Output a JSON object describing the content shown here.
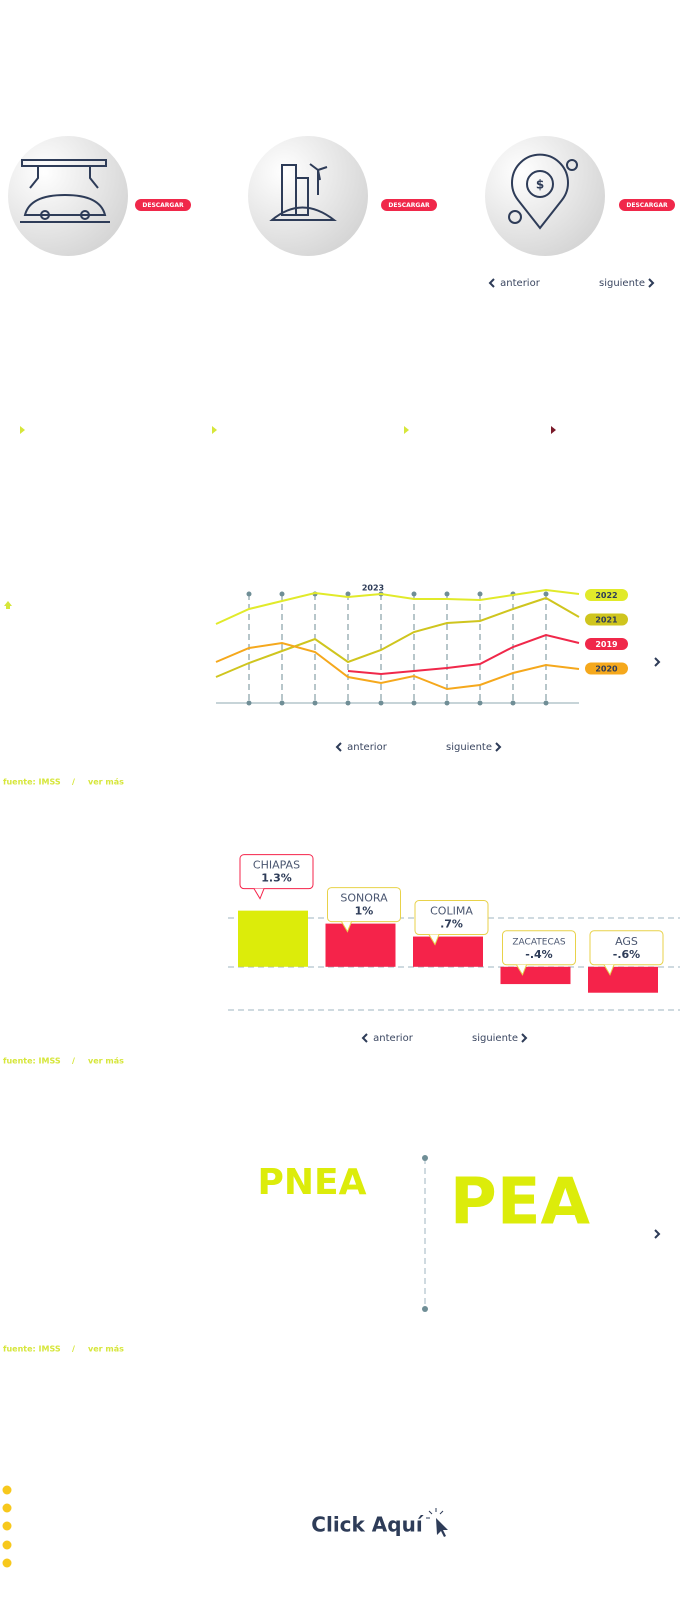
{
  "downloads": [
    "DESCARGAR",
    "DESCARGAR",
    "DESCARGAR"
  ],
  "pagers": [
    {
      "prev": "anterior",
      "next": "siguiente"
    },
    {
      "prev": "anterior",
      "next": "siguiente"
    },
    {
      "prev": "anterior",
      "next": "siguiente"
    }
  ],
  "sources": [
    {
      "source": "fuente: IMSS",
      "separator": "/",
      "more": "ver más"
    },
    {
      "source": "fuente: IMSS",
      "separator": "/",
      "more": "ver más"
    },
    {
      "source": "fuente: IMSS",
      "separator": "/",
      "more": "ver más"
    }
  ],
  "chart_data": [
    {
      "type": "line",
      "annotation": "2023",
      "categories": [
        null,
        null,
        null,
        null,
        null,
        null,
        null,
        null,
        null,
        null,
        null,
        null
      ],
      "ylim": [
        0,
        120
      ],
      "series": [
        {
          "name": "2022",
          "color": "#e1ea2a",
          "values": [
            79,
            94,
            102,
            110,
            106,
            109,
            104,
            104,
            103,
            108,
            113,
            109
          ]
        },
        {
          "name": "2021",
          "color": "#cfc51e",
          "values": [
            26,
            40,
            52,
            64,
            41,
            53,
            71,
            80,
            82,
            94,
            105,
            86
          ]
        },
        {
          "name": "2019",
          "color": "#f0284a",
          "values": [
            null,
            null,
            null,
            null,
            32,
            29,
            32,
            35,
            39,
            56,
            68,
            60
          ]
        },
        {
          "name": "2020",
          "color": "#f5a81c",
          "values": [
            41,
            55,
            60,
            51,
            26,
            20,
            27,
            14,
            18,
            30,
            38,
            34
          ]
        }
      ]
    },
    {
      "type": "bar",
      "categories": [
        "CHIAPAS",
        "SONORA",
        "COLIMA",
        "ZACATECAS",
        "AGS"
      ],
      "values": [
        1.3,
        1,
        0.7,
        -0.4,
        -0.6
      ],
      "value_labels": [
        "1.3%",
        "1%",
        ".7%",
        "-.4%",
        "-.6%"
      ],
      "colors": [
        "#dcec0a",
        "#f5234a",
        "#f5234a",
        "#f5234a",
        "#f5234a"
      ],
      "label_colors": [
        "#f5234a",
        "#e8d24a",
        "#e8d24a",
        "#e8d24a",
        "#e8d24a"
      ],
      "ylim": [
        -1,
        1.5
      ]
    }
  ],
  "labor": {
    "left": "PNEA",
    "right": "PEA"
  },
  "cta": "Click Aquí"
}
